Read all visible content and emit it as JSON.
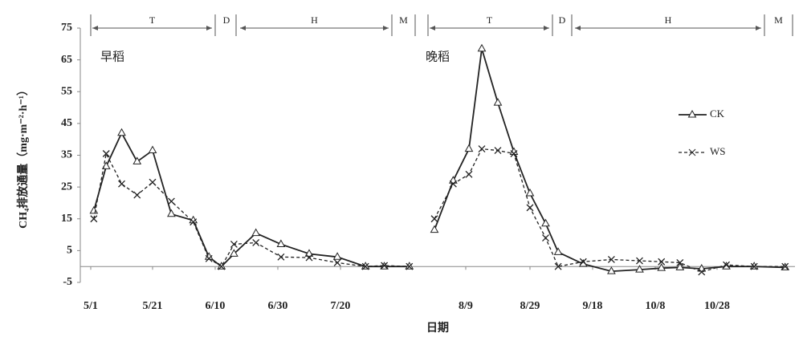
{
  "chart_data": {
    "type": "line",
    "x": [
      "5/2",
      "5/6",
      "5/11",
      "5/16",
      "5/21",
      "5/27",
      "6/3",
      "6/8",
      "6/12",
      "6/16",
      "6/23",
      "7/1",
      "7/10",
      "7/19",
      "7/24",
      "7/27",
      "7/31",
      null,
      "8/4",
      "8/7",
      "8/10",
      "8/14",
      "8/19",
      "8/24",
      "8/29",
      "9/3",
      "9/7",
      "9/15",
      "9/24",
      "10/3",
      "10/10",
      "10/16",
      "10/23",
      "10/31",
      "11/9",
      "11/19"
    ],
    "series": [
      {
        "name": "CK",
        "color": "#222222",
        "marker": "triangle",
        "dash": false,
        "values": [
          17.5,
          31.5,
          42,
          33,
          36.5,
          16.5,
          14.5,
          3,
          0,
          4,
          10.5,
          7,
          4,
          3,
          0,
          0,
          0,
          null,
          11.5,
          27,
          37,
          68.5,
          51.5,
          36,
          23,
          13.5,
          4.5,
          0.8,
          -1.5,
          -1,
          -0.5,
          -0.3,
          -0.7,
          0,
          0,
          -0.3
        ]
      },
      {
        "name": "WS",
        "color": "#222222",
        "marker": "x",
        "dash": true,
        "values": [
          15,
          35.5,
          26,
          22.5,
          26.5,
          20.5,
          14,
          2.5,
          0,
          7,
          7.5,
          3,
          2.8,
          1.2,
          0,
          0.3,
          0,
          null,
          15,
          26,
          29,
          37,
          36.5,
          35.5,
          18.5,
          9,
          0,
          1.5,
          2.2,
          1.8,
          1.5,
          1.2,
          -1.7,
          0.5,
          0,
          0
        ]
      }
    ],
    "xticks": [
      "5/1",
      "5/21",
      "6/10",
      "6/30",
      "7/20",
      "8/9",
      "8/29",
      "9/18",
      "10/8",
      "10/28"
    ],
    "ylim": [
      -5,
      75
    ],
    "yticks": [
      -5,
      5,
      15,
      25,
      35,
      45,
      55,
      65,
      75
    ],
    "ylabel": "CH₄排放通量（mg·m⁻²·h⁻¹）",
    "xlabel": "日期",
    "season_labels": [
      "早稻",
      "晚稻"
    ],
    "phases": [
      "T",
      "D",
      "H",
      "M",
      "T",
      "D",
      "H",
      "M"
    ],
    "legend": "right"
  }
}
